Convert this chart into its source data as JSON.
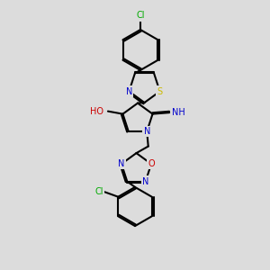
{
  "background_color": "#dcdcdc",
  "bond_color": "#000000",
  "atom_colors": {
    "N": "#0000cc",
    "O": "#cc0000",
    "S": "#ccbb00",
    "Cl": "#00aa00",
    "C": "#000000",
    "H": "#000000"
  },
  "figsize": [
    3.0,
    3.0
  ],
  "dpi": 100,
  "xlim": [
    0,
    10
  ],
  "ylim": [
    0,
    10
  ]
}
